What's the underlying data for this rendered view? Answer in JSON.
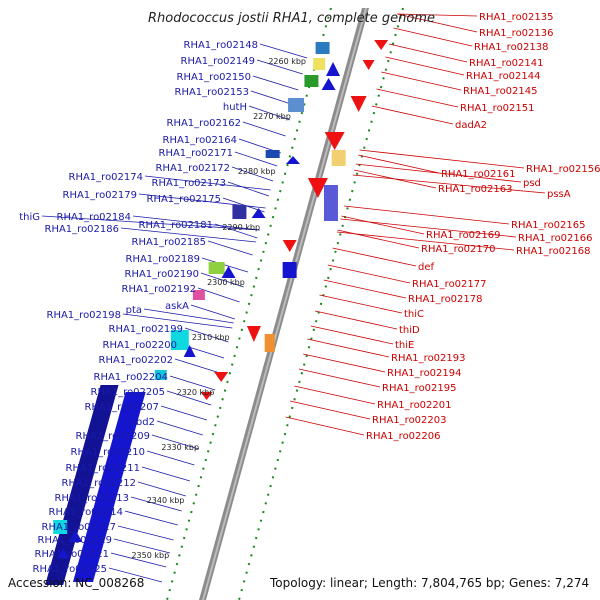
{
  "title": "Rhodococcus jostii RHA1, complete genome",
  "accession": "Accession: NC_008268",
  "topology": "Topology: linear; Length: 7,804,765 bp; Genes: 7,274",
  "colors": {
    "left_label": "#1a1aa8",
    "right_label": "#cc0000",
    "backbone": "#8c8c8c",
    "tick": "#1a8a1a",
    "forward_gene": "#1515d0",
    "reverse_gene": "#ee1111"
  },
  "kbp_ticks": [
    "2260 kbp",
    "2270 kbp",
    "2280 kbp",
    "2290 kbp",
    "2300 kbp",
    "2310 kbp",
    "2320 kbp",
    "2330 kbp",
    "2340 kbp",
    "2350 kbp"
  ],
  "left_labels": [
    "RHA1_ro02148",
    "RHA1_ro02149",
    "RHA1_ro02150",
    "RHA1_ro02153",
    "hutH",
    "RHA1_ro02162",
    "RHA1_ro02164",
    "RHA1_ro02171",
    "RHA1_ro02172",
    "RHA1_ro02174",
    "RHA1_ro02173",
    "RHA1_ro02179",
    "RHA1_ro02175",
    "RHA1_ro02184",
    "thiG",
    "RHA1_ro02186",
    "RHA1_ro02181",
    "RHA1_ro02185",
    "RHA1_ro02189",
    "RHA1_ro02190",
    "RHA1_ro02192",
    "askA",
    "pta",
    "RHA1_ro02198",
    "RHA1_ro02199",
    "RHA1_ro02200",
    "RHA1_ro02202",
    "RHA1_ro02204",
    "RHA1_ro02205",
    "RHA1_ro02207",
    "hbd2",
    "RHA1_ro02209",
    "RHA1_ro02210",
    "RHA1_ro02211",
    "RHA1_ro02212",
    "RHA1_ro02213",
    "RHA1_ro02214",
    "RHA1_ro02217",
    "RHA1_ro02219",
    "RHA1_ro02221",
    "RHA1_ro02225"
  ],
  "right_labels": [
    "RHA1_ro02135",
    "RHA1_ro02136",
    "RHA1_ro02138",
    "RHA1_ro02141",
    "RHA1_ro02144",
    "RHA1_ro02145",
    "RHA1_ro02151",
    "dadA2",
    "RHA1_ro02156",
    "RHA1_ro02161",
    "psd",
    "RHA1_ro02163",
    "pssA",
    "RHA1_ro02165",
    "RHA1_ro02166",
    "RHA1_ro02169",
    "RHA1_ro02168",
    "RHA1_ro02170",
    "def",
    "RHA1_ro02177",
    "RHA1_ro02178",
    "thiC",
    "thiD",
    "thiE",
    "RHA1_ro02193",
    "RHA1_ro02194",
    "RHA1_ro02195",
    "RHA1_ro02201",
    "RHA1_ro02203",
    "RHA1_ro02206"
  ]
}
